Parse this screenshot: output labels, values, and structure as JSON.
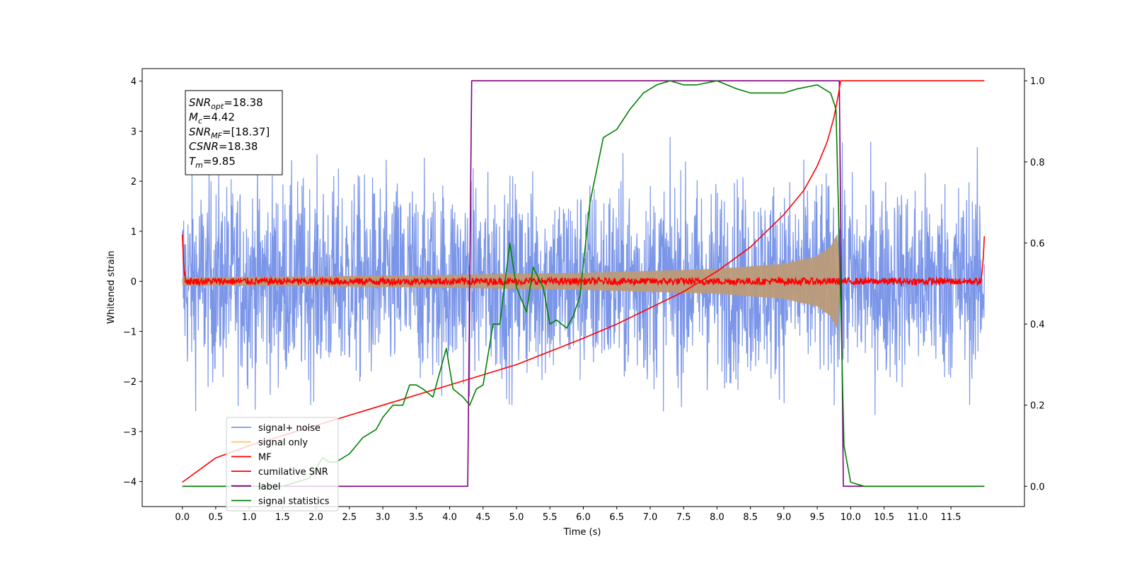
{
  "chart_data": {
    "type": "line",
    "xlabel": "Time (s)",
    "ylabel": "Whitened strain",
    "xlim": [
      -0.6,
      12.6
    ],
    "ylim_left": [
      -4.5,
      4.25
    ],
    "ylim_right": [
      -0.05,
      1.03
    ],
    "x_ticks": [
      "0.0",
      "0.5",
      "1.0",
      "1.5",
      "2.0",
      "2.5",
      "3.0",
      "3.5",
      "4.0",
      "4.5",
      "5.0",
      "5.5",
      "6.0",
      "6.5",
      "7.0",
      "7.5",
      "8.0",
      "8.5",
      "9.0",
      "9.5",
      "10.0",
      "10.5",
      "11.0",
      "11.5"
    ],
    "y_ticks_left": [
      "−4",
      "−3",
      "−2",
      "−1",
      "0",
      "1",
      "2",
      "3",
      "4"
    ],
    "y_ticks_right": [
      "0.0",
      "0.2",
      "0.4",
      "0.6",
      "0.8",
      "1.0"
    ],
    "info_box": [
      {
        "base": "SNR",
        "sub": "opt",
        "value": "=18.38"
      },
      {
        "base": "M",
        "sub": "c",
        "value": "=4.42"
      },
      {
        "base": "SNR",
        "sub": "MF",
        "value": "=[18.37]"
      },
      {
        "base": "CSNR",
        "sub": "",
        "value": "=18.38"
      },
      {
        "base": "T",
        "sub": "m",
        "value": "=9.85"
      }
    ],
    "legend_location": "lower left",
    "series": [
      {
        "name": "signal+ noise",
        "axis": "left",
        "color": "#7b96e8",
        "style": "noise band",
        "amplitude_range": [
          -3.7,
          3.6
        ],
        "x_range": [
          0.0,
          12.0
        ]
      },
      {
        "name": "signal only",
        "axis": "left",
        "color": "#bc9a78",
        "style": "chirp envelope",
        "x_range": [
          0.0,
          9.85
        ],
        "x": [
          0.0,
          2.0,
          4.0,
          6.0,
          8.0,
          9.0,
          9.5,
          9.7,
          9.8,
          9.85
        ],
        "y": [
          0.08,
          0.1,
          0.13,
          0.17,
          0.25,
          0.35,
          0.5,
          0.7,
          0.95,
          0.0
        ]
      },
      {
        "name": "MF",
        "axis": "left",
        "color": "#ff0000",
        "style": "noisy line near 0",
        "x_range": [
          0.0,
          12.0
        ],
        "x": [
          0.0,
          0.02,
          0.05,
          11.95,
          11.98,
          12.0
        ],
        "y": [
          1.0,
          0.4,
          0.05,
          0.05,
          0.4,
          0.9
        ]
      },
      {
        "name": "cumilative SNR",
        "axis": "right",
        "color": "#ff0000",
        "x": [
          0.0,
          0.5,
          1.0,
          2.0,
          3.0,
          4.0,
          5.0,
          6.0,
          6.5,
          7.0,
          7.5,
          8.0,
          8.5,
          9.0,
          9.3,
          9.5,
          9.65,
          9.75,
          9.82,
          9.85,
          12.0
        ],
        "y": [
          0.01,
          0.07,
          0.1,
          0.15,
          0.2,
          0.25,
          0.3,
          0.365,
          0.4,
          0.44,
          0.48,
          0.53,
          0.59,
          0.67,
          0.73,
          0.79,
          0.85,
          0.91,
          0.97,
          1.0,
          1.0
        ]
      },
      {
        "name": "label",
        "axis": "right",
        "color": "#800080",
        "x": [
          0.0,
          4.27,
          4.33,
          9.83,
          9.89,
          12.0
        ],
        "y": [
          0.0,
          0.0,
          1.0,
          1.0,
          0.0,
          0.0
        ]
      },
      {
        "name": "signal statistics",
        "axis": "right",
        "color": "#008000",
        "x": [
          0.0,
          1.0,
          1.5,
          1.9,
          2.1,
          2.2,
          2.3,
          2.5,
          2.7,
          2.9,
          3.0,
          3.15,
          3.3,
          3.4,
          3.5,
          3.6,
          3.75,
          3.85,
          3.95,
          4.05,
          4.2,
          4.3,
          4.4,
          4.5,
          4.65,
          4.75,
          4.9,
          5.0,
          5.15,
          5.25,
          5.4,
          5.5,
          5.6,
          5.75,
          5.85,
          5.95,
          6.1,
          6.3,
          6.5,
          6.7,
          6.9,
          7.1,
          7.3,
          7.5,
          7.7,
          8.0,
          8.3,
          8.5,
          8.8,
          9.0,
          9.2,
          9.5,
          9.6,
          9.7,
          9.78,
          9.83,
          9.9,
          10.0,
          10.2,
          12.0
        ],
        "y": [
          0.0,
          0.0,
          0.0,
          0.02,
          0.07,
          0.06,
          0.06,
          0.08,
          0.12,
          0.14,
          0.17,
          0.2,
          0.2,
          0.25,
          0.25,
          0.24,
          0.22,
          0.28,
          0.34,
          0.24,
          0.22,
          0.2,
          0.24,
          0.25,
          0.4,
          0.4,
          0.6,
          0.49,
          0.43,
          0.54,
          0.49,
          0.4,
          0.41,
          0.39,
          0.42,
          0.47,
          0.7,
          0.86,
          0.88,
          0.93,
          0.97,
          0.99,
          1.0,
          0.99,
          0.99,
          1.0,
          0.98,
          0.97,
          0.97,
          0.97,
          0.98,
          0.99,
          0.98,
          0.97,
          0.93,
          0.6,
          0.1,
          0.01,
          0.0,
          0.0
        ]
      }
    ]
  }
}
